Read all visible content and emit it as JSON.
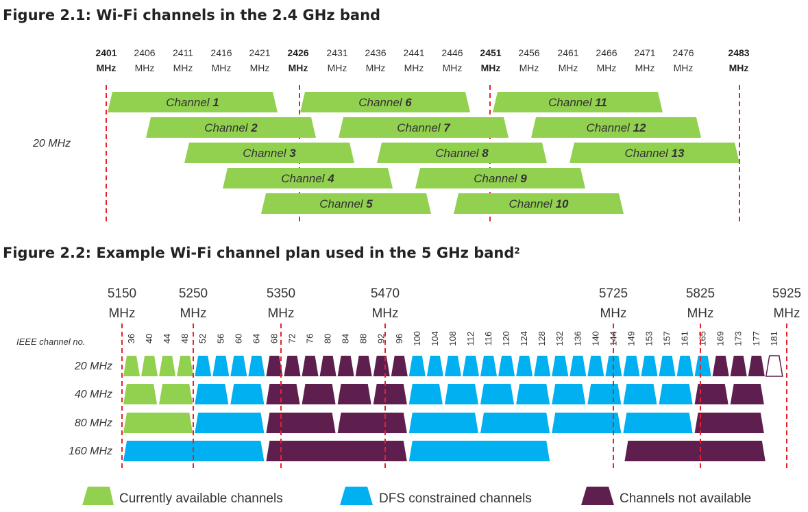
{
  "colors": {
    "available": "#92d050",
    "dfs": "#00b0f0",
    "not_available": "#5e1f4f",
    "marker_line": "#e8212b"
  },
  "fig1": {
    "title": "Figure 2.1: Wi-Fi channels in the 2.4 GHz band",
    "row_label": "20 MHz",
    "unit": "MHz",
    "freqs": [
      {
        "f": "2401",
        "bold": true
      },
      {
        "f": "2406",
        "bold": false
      },
      {
        "f": "2411",
        "bold": false
      },
      {
        "f": "2416",
        "bold": false
      },
      {
        "f": "2421",
        "bold": false
      },
      {
        "f": "2426",
        "bold": true
      },
      {
        "f": "2431",
        "bold": false
      },
      {
        "f": "2436",
        "bold": false
      },
      {
        "f": "2441",
        "bold": false
      },
      {
        "f": "2446",
        "bold": false
      },
      {
        "f": "2451",
        "bold": true
      },
      {
        "f": "2456",
        "bold": false
      },
      {
        "f": "2461",
        "bold": false
      },
      {
        "f": "2466",
        "bold": false
      },
      {
        "f": "2471",
        "bold": false
      },
      {
        "f": "2476",
        "bold": false
      },
      {
        "f": "2483",
        "bold": true
      }
    ],
    "channel_word": "Channel",
    "channels": [
      "1",
      "2",
      "3",
      "4",
      "5",
      "6",
      "7",
      "8",
      "9",
      "10",
      "11",
      "12",
      "13"
    ]
  },
  "fig2": {
    "title": "Figure 2.2: Example Wi-Fi channel plan used in the 5 GHz band",
    "title_sup": "2",
    "unit": "MHz",
    "freqs": [
      "5150",
      "5250",
      "5350",
      "5470",
      "5725",
      "5825",
      "5925"
    ],
    "ieee_label": "IEEE channel no.",
    "ieee_channels": [
      "36",
      "40",
      "44",
      "48",
      "52",
      "56",
      "60",
      "64",
      "68",
      "72",
      "76",
      "80",
      "84",
      "88",
      "92",
      "96",
      "100",
      "104",
      "108",
      "112",
      "116",
      "120",
      "124",
      "128",
      "132",
      "136",
      "140",
      "144",
      "149",
      "153",
      "157",
      "161",
      "165",
      "169",
      "173",
      "177",
      "181"
    ],
    "rows": [
      "20 MHz",
      "40 MHz",
      "80 MHz",
      "160 MHz"
    ],
    "row20": [
      "A",
      "A",
      "A",
      "A",
      "D",
      "D",
      "D",
      "D",
      "N",
      "N",
      "N",
      "N",
      "N",
      "N",
      "N",
      "N",
      "D",
      "D",
      "D",
      "D",
      "D",
      "D",
      "D",
      "D",
      "D",
      "D",
      "D",
      "D",
      "D",
      "D",
      "D",
      "D",
      "D",
      "N",
      "N",
      "N",
      "O"
    ],
    "row40": [
      "A",
      "A",
      "D",
      "D",
      "N",
      "N",
      "N",
      "N",
      "D",
      "D",
      "D",
      "D",
      "D",
      "D",
      "D",
      "D",
      "N",
      "N"
    ],
    "row80": [
      "A",
      "D",
      "N",
      "N",
      "D",
      "D",
      "D",
      "D",
      "N"
    ],
    "row160": [
      "D",
      "N",
      "D",
      "GAP",
      "N"
    ]
  },
  "legend": {
    "available": "Currently available channels",
    "dfs": "DFS constrained channels",
    "not_available": "Channels not available"
  }
}
